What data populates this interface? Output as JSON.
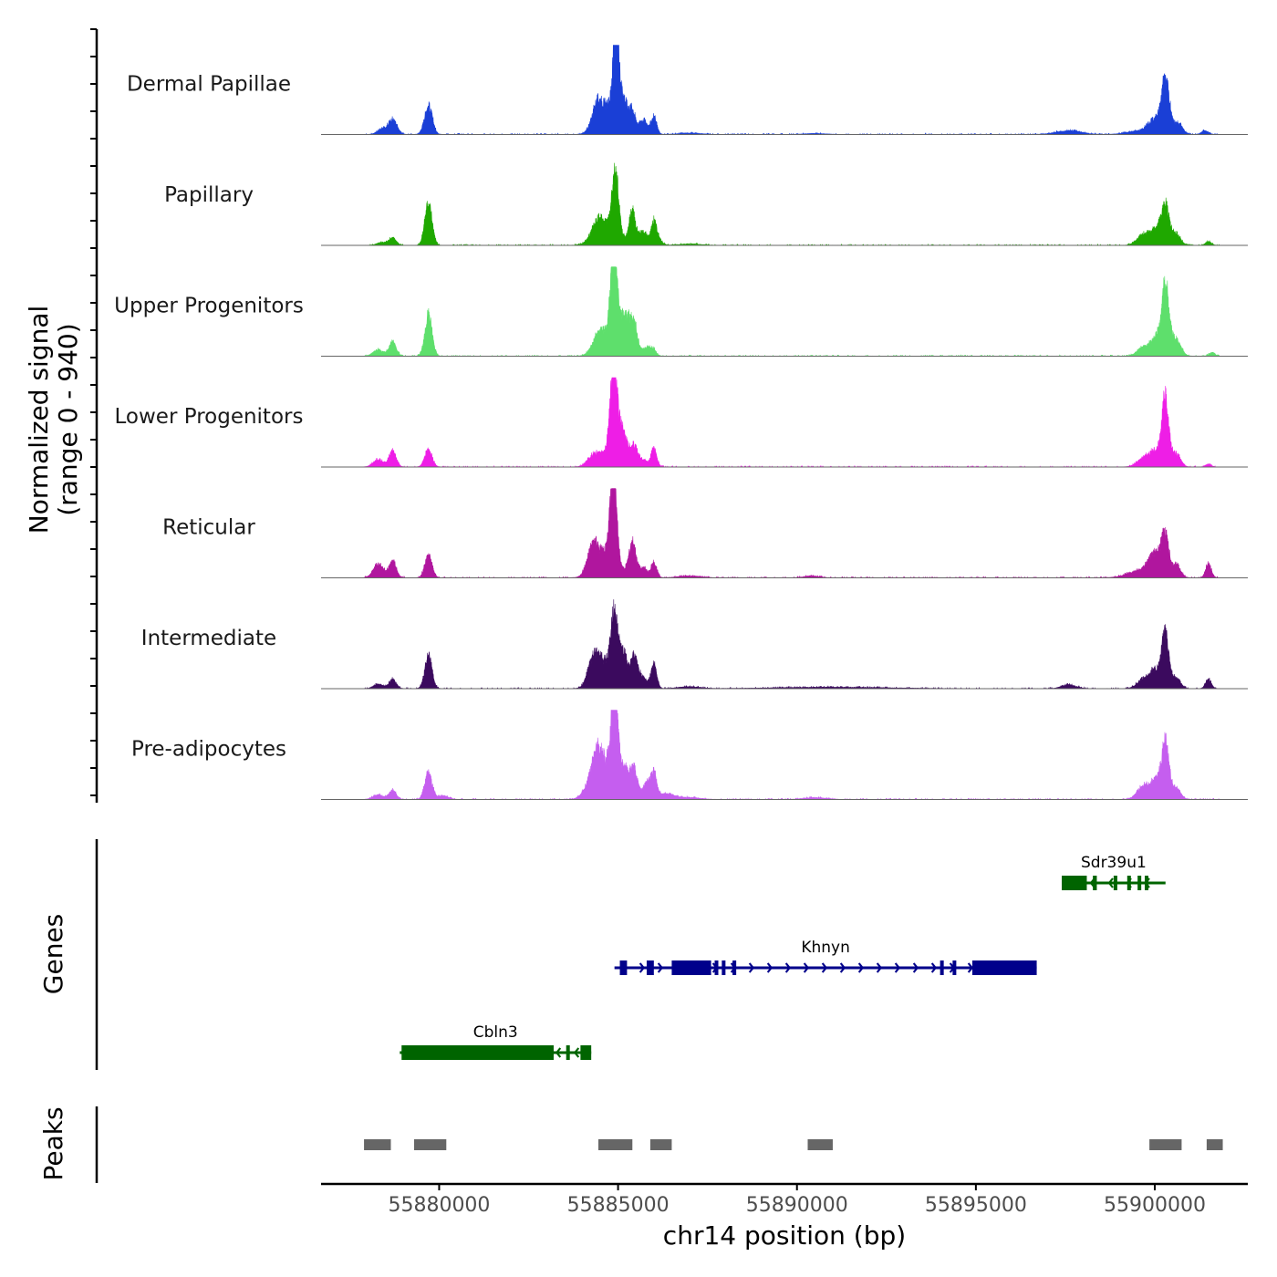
{
  "chart_data": {
    "type": "area",
    "title": "",
    "ylabel": [
      "Normalized signal",
      "(range 0 - 940)"
    ],
    "xlabel": "chr14 position (bp)",
    "signal_range": [
      0,
      940
    ],
    "xlim": [
      55876700,
      55902600
    ],
    "x_ticks": [
      55880000,
      55885000,
      55890000,
      55895000,
      55900000
    ],
    "x_tick_labels": [
      "55880000",
      "55885000",
      "55890000",
      "55895000",
      "55900000"
    ],
    "region_start": 55877900,
    "region_end": 55901800,
    "tracks": [
      {
        "name": "Dermal Papillae",
        "color": "#1a3fd6",
        "peaks": [
          [
            55878400,
            130,
            55
          ],
          [
            55878700,
            120,
            160
          ],
          [
            55879700,
            110,
            310
          ],
          [
            55884400,
            130,
            180
          ],
          [
            55884930,
            75,
            900
          ],
          [
            55884650,
            250,
            300
          ],
          [
            55885100,
            150,
            420
          ],
          [
            55885400,
            90,
            230
          ],
          [
            55885700,
            110,
            160
          ],
          [
            55886000,
            80,
            190
          ],
          [
            55887000,
            300,
            15
          ],
          [
            55890500,
            300,
            10
          ],
          [
            55897600,
            350,
            40
          ],
          [
            55899600,
            350,
            40
          ],
          [
            55900000,
            180,
            140
          ],
          [
            55900300,
            110,
            580
          ],
          [
            55900650,
            130,
            120
          ],
          [
            55901400,
            100,
            40
          ]
        ]
      },
      {
        "name": "Papillary",
        "color": "#1fa800",
        "peaks": [
          [
            55878400,
            140,
            30
          ],
          [
            55878700,
            100,
            80
          ],
          [
            55879700,
            100,
            470
          ],
          [
            55884400,
            150,
            130
          ],
          [
            55884930,
            90,
            640
          ],
          [
            55884700,
            300,
            240
          ],
          [
            55885400,
            90,
            360
          ],
          [
            55885700,
            110,
            150
          ],
          [
            55886000,
            80,
            230
          ],
          [
            55886100,
            120,
            60
          ],
          [
            55887000,
            300,
            15
          ],
          [
            55899700,
            180,
            120
          ],
          [
            55900050,
            140,
            160
          ],
          [
            55900300,
            110,
            410
          ],
          [
            55900600,
            120,
            120
          ],
          [
            55901500,
            80,
            40
          ]
        ]
      },
      {
        "name": "Upper Progenitors",
        "color": "#5edf6c",
        "peaks": [
          [
            55878300,
            140,
            70
          ],
          [
            55878700,
            100,
            150
          ],
          [
            55879700,
            100,
            450
          ],
          [
            55884400,
            150,
            110
          ],
          [
            55884880,
            90,
            980
          ],
          [
            55884700,
            250,
            250
          ],
          [
            55885200,
            150,
            410
          ],
          [
            55885450,
            100,
            300
          ],
          [
            55885800,
            110,
            100
          ],
          [
            55886000,
            80,
            60
          ],
          [
            55899700,
            180,
            100
          ],
          [
            55900050,
            140,
            200
          ],
          [
            55900300,
            100,
            760
          ],
          [
            55900600,
            130,
            180
          ],
          [
            55901600,
            80,
            40
          ]
        ]
      },
      {
        "name": "Lower Progenitors",
        "color": "#ee1ee6",
        "peaks": [
          [
            55878300,
            140,
            80
          ],
          [
            55878700,
            100,
            170
          ],
          [
            55879700,
            100,
            190
          ],
          [
            55884300,
            150,
            80
          ],
          [
            55884870,
            90,
            960
          ],
          [
            55884700,
            300,
            150
          ],
          [
            55885100,
            150,
            380
          ],
          [
            55885450,
            100,
            200
          ],
          [
            55885700,
            110,
            80
          ],
          [
            55886000,
            80,
            200
          ],
          [
            55899700,
            180,
            100
          ],
          [
            55900000,
            140,
            150
          ],
          [
            55900290,
            100,
            740
          ],
          [
            55900600,
            120,
            140
          ],
          [
            55901500,
            80,
            30
          ]
        ]
      },
      {
        "name": "Reticular",
        "color": "#b0169e",
        "peaks": [
          [
            55878300,
            140,
            150
          ],
          [
            55878700,
            100,
            180
          ],
          [
            55879700,
            100,
            240
          ],
          [
            55884300,
            150,
            280
          ],
          [
            55884870,
            90,
            960
          ],
          [
            55884700,
            300,
            260
          ],
          [
            55885400,
            100,
            370
          ],
          [
            55885700,
            110,
            110
          ],
          [
            55886000,
            80,
            160
          ],
          [
            55887000,
            300,
            20
          ],
          [
            55890400,
            200,
            20
          ],
          [
            55899600,
            350,
            80
          ],
          [
            55900000,
            170,
            240
          ],
          [
            55900290,
            100,
            450
          ],
          [
            55900600,
            120,
            140
          ],
          [
            55901500,
            80,
            150
          ]
        ]
      },
      {
        "name": "Intermediate",
        "color": "#3b0a5e",
        "peaks": [
          [
            55878300,
            130,
            50
          ],
          [
            55878700,
            100,
            100
          ],
          [
            55879700,
            100,
            350
          ],
          [
            55884300,
            150,
            250
          ],
          [
            55884900,
            90,
            700
          ],
          [
            55884650,
            250,
            300
          ],
          [
            55885150,
            100,
            380
          ],
          [
            55885450,
            100,
            350
          ],
          [
            55885700,
            110,
            120
          ],
          [
            55886000,
            80,
            260
          ],
          [
            55887000,
            300,
            20
          ],
          [
            55891000,
            1500,
            15
          ],
          [
            55897600,
            200,
            40
          ],
          [
            55899700,
            180,
            100
          ],
          [
            55900000,
            140,
            180
          ],
          [
            55900290,
            100,
            580
          ],
          [
            55900600,
            120,
            120
          ],
          [
            55901500,
            80,
            100
          ]
        ]
      },
      {
        "name": "Pre-adipocytes",
        "color": "#c55eef",
        "peaks": [
          [
            55878300,
            140,
            50
          ],
          [
            55878700,
            100,
            100
          ],
          [
            55879700,
            100,
            300
          ],
          [
            55880100,
            150,
            40
          ],
          [
            55884100,
            150,
            60
          ],
          [
            55884400,
            150,
            350
          ],
          [
            55884900,
            90,
            980
          ],
          [
            55884700,
            300,
            350
          ],
          [
            55885200,
            120,
            250
          ],
          [
            55885450,
            100,
            300
          ],
          [
            55885800,
            110,
            170
          ],
          [
            55886000,
            80,
            250
          ],
          [
            55886300,
            250,
            60
          ],
          [
            55887000,
            300,
            20
          ],
          [
            55890500,
            300,
            20
          ],
          [
            55899700,
            180,
            150
          ],
          [
            55900050,
            140,
            200
          ],
          [
            55900300,
            100,
            590
          ],
          [
            55900600,
            120,
            120
          ]
        ]
      }
    ],
    "genes": [
      {
        "name": "Sdr39u1",
        "color": "#006400",
        "strand": "-",
        "row": 0,
        "start": 55897400,
        "end": 55900300,
        "exons": [
          [
            55897400,
            55898100
          ],
          [
            55898270,
            55898380
          ],
          [
            55898850,
            55898950
          ],
          [
            55899230,
            55899320
          ],
          [
            55899520,
            55899620
          ],
          [
            55899720,
            55899790
          ]
        ]
      },
      {
        "name": "Khnyn",
        "color": "#00008b",
        "strand": "+",
        "row": 1,
        "start": 55884900,
        "end": 55896700,
        "exons": [
          [
            55885050,
            55885250
          ],
          [
            55885800,
            55886000
          ],
          [
            55886500,
            55887600
          ],
          [
            55887700,
            55887800
          ],
          [
            55887900,
            55888000
          ],
          [
            55888200,
            55888300
          ],
          [
            55894000,
            55894100
          ],
          [
            55894350,
            55894450
          ],
          [
            55894900,
            55896700
          ]
        ]
      },
      {
        "name": "Cbln3",
        "color": "#006400",
        "strand": "-",
        "row": 2,
        "start": 55878900,
        "end": 55884250,
        "exons": [
          [
            55878950,
            55883200
          ],
          [
            55883550,
            55883650
          ],
          [
            55883950,
            55884250
          ]
        ]
      }
    ],
    "peaks": [
      [
        55877900,
        55878650
      ],
      [
        55879300,
        55880200
      ],
      [
        55884450,
        55885400
      ],
      [
        55885900,
        55886500
      ],
      [
        55890300,
        55891000
      ],
      [
        55899850,
        55900750
      ],
      [
        55901450,
        55901900
      ]
    ],
    "peaks_color": "#666666",
    "panel_labels": {
      "genes": "Genes",
      "peaks": "Peaks"
    }
  }
}
